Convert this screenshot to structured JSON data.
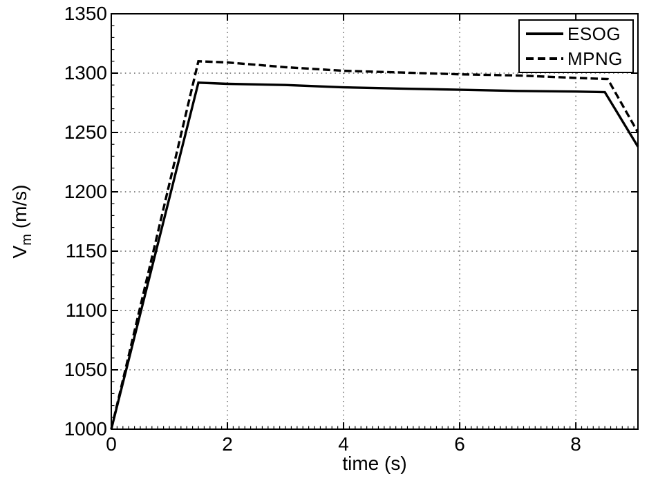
{
  "chart_data": {
    "type": "line",
    "title": "",
    "xlabel": "time (s)",
    "ylabel": "Vm (m/s)",
    "ylabel_parts": {
      "main": "V",
      "sub": "m",
      "unit": " (m/s)"
    },
    "xlim": [
      0,
      9.07
    ],
    "ylim": [
      1000,
      1350
    ],
    "x_major_ticks": [
      0,
      2,
      4,
      6,
      8
    ],
    "y_major_ticks": [
      1000,
      1050,
      1100,
      1150,
      1200,
      1250,
      1300,
      1350
    ],
    "x_minor_step": 0.1,
    "y_minor_step": 10,
    "grid": "dotted",
    "legend_position": "top-right",
    "axis_color": "#000000",
    "grid_color": "#444444",
    "series": [
      {
        "name": "ESOG",
        "style": "solid",
        "color": "#000000",
        "points": [
          [
            0,
            1000
          ],
          [
            1.5,
            1292
          ],
          [
            2,
            1291
          ],
          [
            3,
            1290
          ],
          [
            4,
            1288
          ],
          [
            5,
            1287
          ],
          [
            6,
            1286
          ],
          [
            7,
            1285
          ],
          [
            8,
            1284.5
          ],
          [
            8.5,
            1284
          ],
          [
            9.07,
            1238
          ]
        ]
      },
      {
        "name": "MPNG",
        "style": "dashed",
        "color": "#000000",
        "points": [
          [
            0,
            1000
          ],
          [
            1.5,
            1310
          ],
          [
            2,
            1309
          ],
          [
            3,
            1305
          ],
          [
            4,
            1302
          ],
          [
            5,
            1300.5
          ],
          [
            6,
            1299
          ],
          [
            7,
            1298
          ],
          [
            8,
            1296
          ],
          [
            8.55,
            1295
          ],
          [
            9.07,
            1250
          ]
        ]
      }
    ]
  }
}
